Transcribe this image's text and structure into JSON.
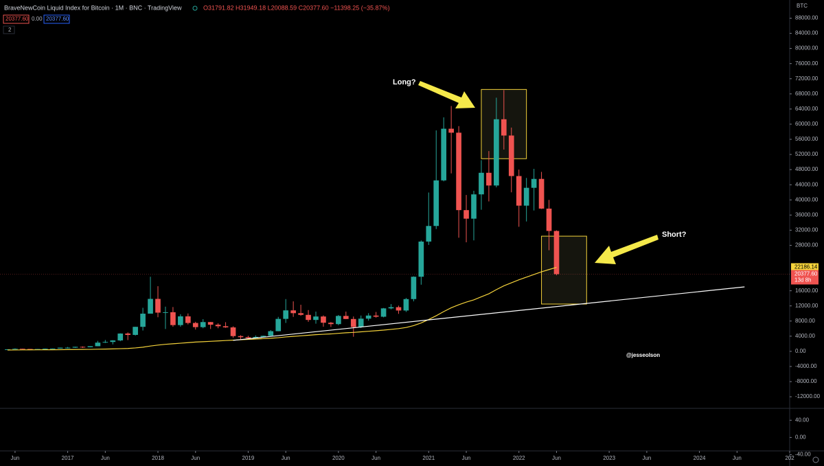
{
  "header": {
    "title": "BraveNewCoin Liquid Index for Bitcoin · 1M · BNC · TradingView",
    "ohlc": "O31791.82 H31949.18 L20088.59 C20377.60 −11398.25 (−35.87%)",
    "row2": [
      "20377.60",
      "0.00",
      "20377.60"
    ],
    "indicator_count": "2"
  },
  "chart_data": {
    "type": "candlestick",
    "currency": "BTC",
    "x": [
      "2016-05",
      "2016-06",
      "2016-07",
      "2016-08",
      "2016-09",
      "2016-10",
      "2016-11",
      "2016-12",
      "2017-01",
      "2017-02",
      "2017-03",
      "2017-04",
      "2017-05",
      "2017-06",
      "2017-07",
      "2017-08",
      "2017-09",
      "2017-10",
      "2017-11",
      "2017-12",
      "2018-01",
      "2018-02",
      "2018-03",
      "2018-04",
      "2018-05",
      "2018-06",
      "2018-07",
      "2018-08",
      "2018-09",
      "2018-10",
      "2018-11",
      "2018-12",
      "2019-01",
      "2019-02",
      "2019-03",
      "2019-04",
      "2019-05",
      "2019-06",
      "2019-07",
      "2019-08",
      "2019-09",
      "2019-10",
      "2019-11",
      "2019-12",
      "2020-01",
      "2020-02",
      "2020-03",
      "2020-04",
      "2020-05",
      "2020-06",
      "2020-07",
      "2020-08",
      "2020-09",
      "2020-10",
      "2020-11",
      "2020-12",
      "2021-01",
      "2021-02",
      "2021-03",
      "2021-04",
      "2021-05",
      "2021-06",
      "2021-07",
      "2021-08",
      "2021-09",
      "2021-10",
      "2021-11",
      "2021-12",
      "2022-01",
      "2022-02",
      "2022-03",
      "2022-04",
      "2022-05",
      "2022-06"
    ],
    "open": [
      448,
      531,
      673,
      624,
      575,
      609,
      700,
      742,
      964,
      970,
      1190,
      1080,
      1350,
      2300,
      2480,
      2875,
      4700,
      4340,
      6470,
      9950,
      13850,
      10220,
      10330,
      6930,
      9240,
      7490,
      6390,
      7730,
      7030,
      6625,
      6320,
      4020,
      3740,
      3460,
      3810,
      4100,
      5320,
      8570,
      10820,
      10080,
      9630,
      8290,
      9200,
      7550,
      7190,
      9350,
      8540,
      6420,
      8630,
      9450,
      9140,
      11350,
      11660,
      10780,
      13800,
      19700,
      28990,
      33110,
      45150,
      58800,
      57750,
      37300,
      35040,
      41460,
      47160,
      43800,
      61300,
      57000,
      46300,
      38480,
      43190,
      45540,
      37700,
      31791.82
    ],
    "high": [
      550,
      780,
      705,
      625,
      630,
      740,
      760,
      975,
      1150,
      1210,
      1300,
      1360,
      2760,
      3000,
      2950,
      4760,
      5000,
      6470,
      11500,
      19700,
      17200,
      11800,
      11700,
      9800,
      10000,
      7800,
      8500,
      7760,
      7400,
      7700,
      6600,
      4250,
      4100,
      4200,
      4150,
      5600,
      9100,
      13800,
      13200,
      12300,
      10900,
      10500,
      9500,
      7750,
      9600,
      10500,
      9200,
      9460,
      10080,
      10400,
      11450,
      12470,
      12070,
      14100,
      19800,
      29300,
      41950,
      58350,
      61800,
      64800,
      59500,
      41300,
      42400,
      50500,
      52900,
      67000,
      69000,
      59100,
      48000,
      45800,
      48200,
      47400,
      40000,
      31949.18
    ],
    "low": [
      440,
      520,
      605,
      535,
      570,
      605,
      690,
      740,
      750,
      920,
      890,
      1060,
      1340,
      2200,
      1830,
      2670,
      2970,
      4160,
      5500,
      9950,
      9000,
      5900,
      6500,
      6500,
      7100,
      5750,
      6100,
      5900,
      6100,
      6200,
      3600,
      3200,
      3400,
      3400,
      3700,
      4050,
      5300,
      7500,
      9100,
      9400,
      7800,
      7300,
      6500,
      6450,
      6900,
      8500,
      3850,
      6150,
      8100,
      8900,
      8970,
      11100,
      9900,
      10400,
      13200,
      17600,
      28100,
      32300,
      44900,
      47000,
      30000,
      28800,
      29300,
      37400,
      39600,
      43300,
      53300,
      42000,
      32900,
      34300,
      37200,
      37600,
      26700,
      20088.59
    ],
    "close": [
      531,
      673,
      624,
      575,
      609,
      700,
      742,
      964,
      970,
      1190,
      1080,
      1350,
      2300,
      2480,
      2875,
      4700,
      4340,
      6470,
      9950,
      13850,
      10220,
      10330,
      6930,
      9240,
      7490,
      6390,
      7730,
      7030,
      6625,
      6320,
      4020,
      3740,
      3460,
      3810,
      4100,
      5320,
      8570,
      10820,
      10080,
      9630,
      8290,
      9200,
      7550,
      7190,
      9350,
      8540,
      6420,
      8630,
      9450,
      9140,
      11350,
      11660,
      10780,
      13800,
      19700,
      28990,
      33110,
      45150,
      58800,
      57750,
      37300,
      35040,
      41460,
      47160,
      43800,
      61300,
      57000,
      46300,
      38480,
      43190,
      45540,
      37700,
      31791.82,
      20377.6
    ],
    "ma": [
      350,
      360,
      380,
      390,
      400,
      410,
      420,
      440,
      460,
      480,
      500,
      520,
      560,
      600,
      640,
      700,
      760,
      900,
      1100,
      1400,
      1650,
      1850,
      2000,
      2150,
      2300,
      2450,
      2550,
      2650,
      2750,
      2850,
      2950,
      3050,
      3150,
      3250,
      3350,
      3450,
      3600,
      3800,
      3950,
      4100,
      4250,
      4400,
      4500,
      4600,
      4750,
      4900,
      5000,
      5150,
      5300,
      5450,
      5600,
      5800,
      6000,
      6300,
      6800,
      7500,
      8400,
      9400,
      10500,
      11500,
      12300,
      13000,
      13600,
      14400,
      15200,
      16300,
      17300,
      18100,
      18900,
      19600,
      20300,
      21000,
      21600,
      22186.14
    ],
    "up_color": "#26a69a",
    "down_color": "#ef5350",
    "ma_color": "#f5d33b",
    "price_tag": {
      "label": "20377.60",
      "countdown": "13d 8h"
    },
    "trendline": {
      "x": [
        "2018-11",
        "2024-07"
      ],
      "y": [
        2900,
        17020
      ],
      "color": "#ffffff"
    },
    "boxes": [
      {
        "x": [
          "2021-08",
          "2022-02"
        ],
        "y": [
          50880,
          69170
        ]
      },
      {
        "x": [
          "2022-04",
          "2022-10"
        ],
        "y": [
          12490,
          30420
        ]
      }
    ],
    "box_color": "#f5d33b",
    "annotations": [
      "Long?",
      "Short?",
      "@jesseolson"
    ],
    "xlim": [
      "2016-04",
      "2025-01"
    ],
    "xticks": [
      {
        "value": "2016-06",
        "label": "Jun"
      },
      {
        "value": "2017-01",
        "label": "2017"
      },
      {
        "value": "2017-06",
        "label": "Jun"
      },
      {
        "value": "2018-01",
        "label": "2018"
      },
      {
        "value": "2018-06",
        "label": "Jun"
      },
      {
        "value": "2019-01",
        "label": "2019"
      },
      {
        "value": "2019-06",
        "label": "Jun"
      },
      {
        "value": "2020-01",
        "label": "2020"
      },
      {
        "value": "2020-06",
        "label": "Jun"
      },
      {
        "value": "2021-01",
        "label": "2021"
      },
      {
        "value": "2021-06",
        "label": "Jun"
      },
      {
        "value": "2022-01",
        "label": "2022"
      },
      {
        "value": "2022-06",
        "label": "Jun"
      },
      {
        "value": "2023-01",
        "label": "2023"
      },
      {
        "value": "2023-06",
        "label": "Jun"
      },
      {
        "value": "2024-01",
        "label": "2024"
      },
      {
        "value": "2024-06",
        "label": "Jun"
      },
      {
        "value": "2025-01",
        "label": "202"
      }
    ],
    "ylim": [
      -14700,
      92800
    ],
    "yticks": [
      {
        "value": 88000,
        "label": "88000.00"
      },
      {
        "value": 84000,
        "label": "84000.00"
      },
      {
        "value": 80000,
        "label": "80000.00"
      },
      {
        "value": 76000,
        "label": "76000.00"
      },
      {
        "value": 72000,
        "label": "72000.00"
      },
      {
        "value": 68000,
        "label": "68000.00"
      },
      {
        "value": 64000,
        "label": "64000.00"
      },
      {
        "value": 60000,
        "label": "60000.00"
      },
      {
        "value": 56000,
        "label": "56000.00"
      },
      {
        "value": 52000,
        "label": "52000.00"
      },
      {
        "value": 48000,
        "label": "48000.00"
      },
      {
        "value": 44000,
        "label": "44000.00"
      },
      {
        "value": 40000,
        "label": "40000.00"
      },
      {
        "value": 36000,
        "label": "36000.00"
      },
      {
        "value": 32000,
        "label": "32000.00"
      },
      {
        "value": 28000,
        "label": "28000.00"
      },
      {
        "value": 16000,
        "label": "16000.00"
      },
      {
        "value": 12000,
        "label": "12000.00"
      },
      {
        "value": 8000,
        "label": "8000.00"
      },
      {
        "value": 4000,
        "label": "4000.00"
      },
      {
        "value": 0,
        "label": "0.00"
      },
      {
        "value": -4000,
        "label": "-4000.00"
      },
      {
        "value": -8000,
        "label": "-8000.00"
      },
      {
        "value": -12000,
        "label": "-12000.00"
      }
    ],
    "pane2_ylim": [
      -44,
      66
    ],
    "pane2_yticks": [
      {
        "value": 40,
        "label": "40.00"
      },
      {
        "value": 0,
        "label": "0.00"
      },
      {
        "value": -40,
        "label": "-40.00"
      }
    ]
  }
}
